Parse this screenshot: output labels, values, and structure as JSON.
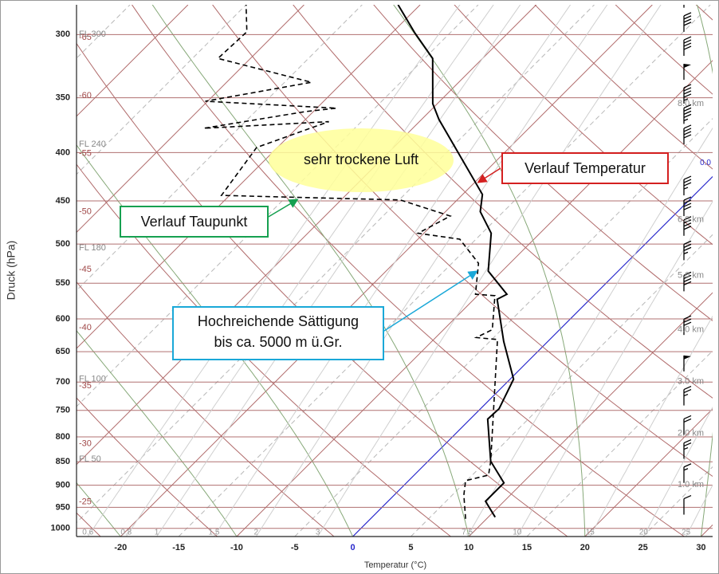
{
  "chart_data": {
    "type": "skew-t",
    "xlabel": "Temperatur (°C)",
    "ylabel": "Druck (hPa)",
    "xlim": [
      -23.8,
      31.0
    ],
    "xticks": [
      -20,
      -15,
      -10,
      -5,
      0,
      5,
      10,
      15,
      20,
      25,
      30
    ],
    "ylim": [
      1020,
      279
    ],
    "yticks": [
      300,
      350,
      400,
      450,
      500,
      550,
      600,
      650,
      700,
      750,
      800,
      850,
      900,
      950,
      1000
    ],
    "log_y": true,
    "grid": true,
    "zero_isotherm_color": "#2a2acc",
    "freezing_level_label": "0.0",
    "isotherm_labels": [
      -65,
      -60,
      -55,
      -50,
      -45,
      -40,
      -35,
      -30,
      -25
    ],
    "mixing_ratio_labels": [
      0.6,
      0.8,
      1,
      1.5,
      2,
      3,
      7.5,
      10,
      15,
      20,
      25
    ],
    "flight_levels": [
      {
        "value": 300,
        "label": "FL 300"
      },
      {
        "value": 392,
        "label": "FL 240"
      },
      {
        "value": 505,
        "label": "FL 180"
      },
      {
        "value": 695,
        "label": "FL 100"
      },
      {
        "value": 845,
        "label": "FL 50"
      }
    ],
    "height_labels": [
      {
        "value": 355,
        "label": "8.0 km"
      },
      {
        "value": 471,
        "label": "6.0 km"
      },
      {
        "value": 540,
        "label": "5.0 km"
      },
      {
        "value": 616,
        "label": "4.0 km"
      },
      {
        "value": 699,
        "label": "3.0 km"
      },
      {
        "value": 793,
        "label": "2.0 km"
      },
      {
        "value": 899,
        "label": "1.0 km"
      }
    ],
    "series": [
      {
        "color": "#000000",
        "dashed": false,
        "pressure": [
          973,
          936,
          895,
          849,
          766,
          747,
          695,
          634,
          572,
          565,
          534,
          487,
          462,
          443,
          369,
          355,
          318,
          299,
          279
        ],
        "values": [
          10.6,
          8.4,
          8.4,
          5.4,
          1.5,
          1.6,
          0.3,
          -3.8,
          -8.0,
          -7.6,
          -11.2,
          -14.2,
          -17.0,
          -18.3,
          -28.5,
          -30.4,
          -34.3,
          -38.0,
          -41.9
        ]
      },
      {
        "color": "#000000",
        "dashed": true,
        "pressure": [
          977,
          922,
          890,
          878,
          849,
          631,
          628,
          616,
          567,
          565,
          524,
          494,
          487,
          467,
          449,
          444,
          395,
          371,
          377,
          362,
          359,
          353,
          337,
          318,
          298,
          279
        ],
        "values": [
          8.2,
          6.0,
          4.9,
          6.4,
          5.4,
          -4.5,
          -6.5,
          -5.8,
          -8.5,
          -10.3,
          -12.7,
          -16.4,
          -20.5,
          -19.2,
          -24.9,
          -40.7,
          -41.8,
          -37.8,
          -48.0,
          -40.7,
          -38.3,
          -50.2,
          -42.7,
          -52.8,
          -52.6,
          -55.0
        ]
      }
    ],
    "wind": {
      "pressure": [
        281,
        298,
        316,
        335,
        355,
        373,
        392,
        444,
        467,
        490,
        520,
        561,
        624,
        682,
        741,
        796,
        844,
        895,
        967
      ],
      "speed": [
        35,
        40,
        40,
        50,
        45,
        45,
        40,
        35,
        40,
        40,
        35,
        40,
        30,
        50,
        25,
        20,
        25,
        15,
        10
      ]
    },
    "annotations": [
      {
        "text": "sehr trockene Luft"
      },
      {
        "text": "Verlauf Temperatur"
      },
      {
        "text": "Verlauf Taupunkt"
      },
      {
        "lines": [
          "Hochreichende Sättigung",
          "bis ca. 5000 m ü.Gr."
        ]
      }
    ]
  }
}
